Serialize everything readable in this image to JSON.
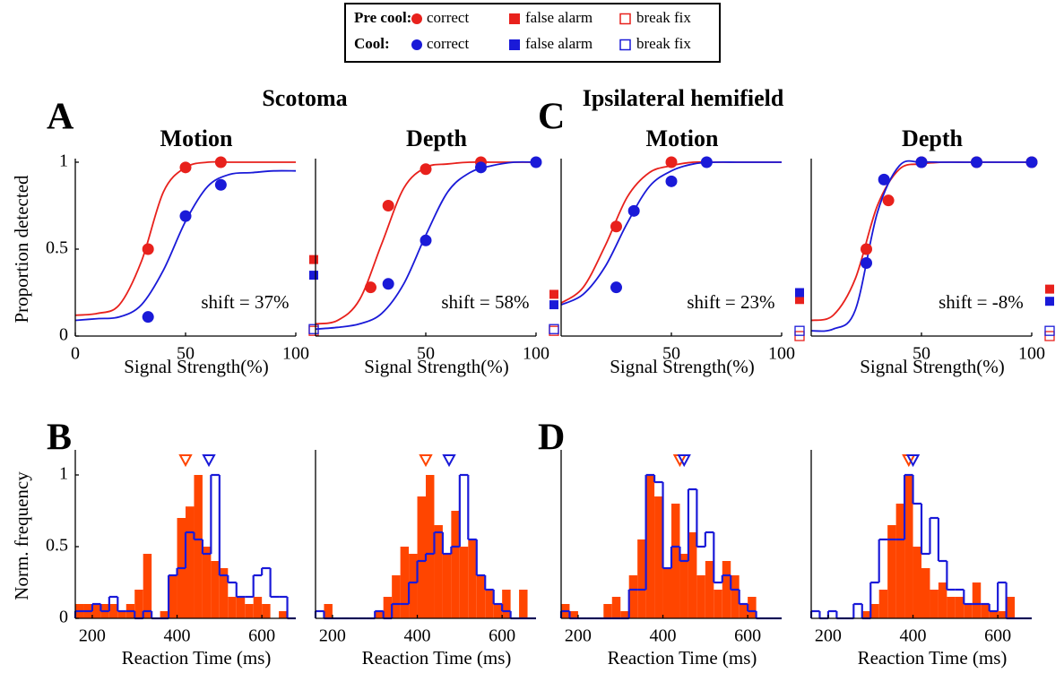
{
  "legend": {
    "rows": [
      {
        "label": "Pre cool:",
        "color": "#e8211c",
        "entries": [
          "correct",
          "false alarm",
          "break fix"
        ]
      },
      {
        "label": "Cool:",
        "color": "#1a1ad8",
        "entries": [
          "correct",
          "false alarm",
          "break fix"
        ]
      }
    ]
  },
  "headers": [
    "Scotoma",
    "Ipsilateral hemifield"
  ],
  "letters": [
    "A",
    "B",
    "C",
    "D"
  ],
  "chart_data": [
    {
      "type": "scatter",
      "title": "Motion",
      "xlabel": "Signal Strength(%)",
      "ylabel": "Proportion detected",
      "annotation": "shift = 37%",
      "xlim": [
        0,
        100
      ],
      "ylim": [
        0,
        1
      ],
      "xticks": [
        0,
        50,
        100
      ],
      "yticks": [
        0,
        0.5,
        1
      ],
      "fit_x": [
        0,
        10,
        20,
        30,
        40,
        50,
        60,
        70,
        80,
        90,
        100
      ],
      "series": [
        {
          "color": "#e8211c",
          "x": [
            33,
            50,
            66
          ],
          "values": [
            0.5,
            0.97,
            1.0
          ],
          "fit_values": [
            0.12,
            0.13,
            0.18,
            0.43,
            0.83,
            0.97,
            1,
            1,
            1,
            1,
            1
          ],
          "false_alarm": 0.44,
          "break_fix": 0.03
        },
        {
          "color": "#1a1ad8",
          "x": [
            33,
            50,
            66
          ],
          "values": [
            0.11,
            0.69,
            0.87
          ],
          "fit_values": [
            0.09,
            0.1,
            0.11,
            0.18,
            0.38,
            0.66,
            0.86,
            0.93,
            0.94,
            0.95,
            0.95
          ],
          "false_alarm": 0.35,
          "break_fix": 0.04
        }
      ]
    },
    {
      "type": "scatter",
      "title": "Depth",
      "xlabel": "Signal Strength(%)",
      "annotation": "shift = 58%",
      "xlim": [
        0,
        100
      ],
      "ylim": [
        0,
        1
      ],
      "xticks": [
        50,
        100
      ],
      "fit_x": [
        0,
        10,
        20,
        30,
        40,
        50,
        60,
        70,
        80,
        90,
        100
      ],
      "series": [
        {
          "color": "#e8211c",
          "x": [
            25,
            33,
            50,
            75
          ],
          "values": [
            0.28,
            0.75,
            0.96,
            1.0
          ],
          "fit_values": [
            0.07,
            0.09,
            0.21,
            0.53,
            0.85,
            0.97,
            0.99,
            1,
            1,
            1,
            1
          ],
          "false_alarm": 0.24,
          "break_fix": 0.03
        },
        {
          "color": "#1a1ad8",
          "x": [
            33,
            50,
            75,
            100
          ],
          "values": [
            0.3,
            0.55,
            0.97,
            1.0
          ],
          "fit_values": [
            0.04,
            0.05,
            0.07,
            0.13,
            0.3,
            0.58,
            0.83,
            0.94,
            0.98,
            1,
            1
          ],
          "false_alarm": 0.18,
          "break_fix": 0.04
        }
      ]
    },
    {
      "type": "scatter",
      "title": "Motion",
      "xlabel": "Signal Strength(%)",
      "annotation": "shift = 23%",
      "xlim": [
        0,
        100
      ],
      "ylim": [
        0,
        1
      ],
      "xticks": [
        50,
        100
      ],
      "fit_x": [
        0,
        10,
        20,
        30,
        40,
        50,
        60,
        70,
        80,
        90,
        100
      ],
      "series": [
        {
          "color": "#e8211c",
          "x": [
            25,
            50
          ],
          "values": [
            0.63,
            1.0
          ],
          "fit_values": [
            0.19,
            0.28,
            0.52,
            0.8,
            0.94,
            0.98,
            1,
            1,
            1,
            1,
            1
          ],
          "false_alarm": 0.21,
          "break_fix": 0.0
        },
        {
          "color": "#1a1ad8",
          "x": [
            25,
            33,
            50,
            66
          ],
          "values": [
            0.28,
            0.72,
            0.89,
            1.0
          ],
          "fit_values": [
            0.18,
            0.24,
            0.4,
            0.65,
            0.86,
            0.95,
            0.99,
            1,
            1,
            1,
            1
          ],
          "false_alarm": 0.25,
          "break_fix": 0.03
        }
      ]
    },
    {
      "type": "scatter",
      "title": "Depth",
      "xlabel": "Signal Strength(%)",
      "annotation": "shift = -8%",
      "xlim": [
        0,
        100
      ],
      "ylim": [
        0,
        1
      ],
      "xticks": [
        50,
        100
      ],
      "fit_x": [
        0,
        10,
        20,
        30,
        40,
        50,
        60,
        70,
        80,
        90,
        100
      ],
      "series": [
        {
          "color": "#e8211c",
          "x": [
            25,
            35,
            50,
            75,
            100
          ],
          "values": [
            0.5,
            0.78,
            1.0,
            1.0,
            1.0
          ],
          "fit_values": [
            0.09,
            0.12,
            0.33,
            0.75,
            0.96,
            0.99,
            1,
            1,
            1,
            1,
            1
          ],
          "false_alarm": 0.27,
          "break_fix": 0.0
        },
        {
          "color": "#1a1ad8",
          "x": [
            25,
            33,
            50,
            75,
            100
          ],
          "values": [
            0.42,
            0.9,
            1.0,
            1.0,
            1.0
          ],
          "fit_values": [
            0.03,
            0.04,
            0.15,
            0.71,
            0.98,
            1,
            1,
            1,
            1,
            1,
            1
          ],
          "false_alarm": 0.2,
          "break_fix": 0.03
        }
      ]
    },
    {
      "type": "histogram",
      "xlabel": "Reaction Time (ms)",
      "ylabel": "Norm. frequency",
      "xlim": [
        160,
        680
      ],
      "ylim": [
        0,
        1.15
      ],
      "xticks": [
        200,
        400,
        600
      ],
      "yticks": [
        0,
        0.5,
        1
      ],
      "bins": [
        160,
        180,
        200,
        220,
        240,
        260,
        280,
        300,
        320,
        340,
        360,
        380,
        400,
        420,
        440,
        460,
        480,
        500,
        520,
        540,
        560,
        580,
        600,
        620,
        640,
        660,
        680
      ],
      "series": [
        {
          "color": "#ff4500",
          "histtype": "bar",
          "median": 420,
          "values": [
            0.1,
            0.1,
            0.1,
            0.1,
            0.1,
            0.05,
            0.1,
            0.2,
            0.45,
            0,
            0.05,
            0.3,
            0.7,
            0.78,
            1,
            0.5,
            0.4,
            0.35,
            0.15,
            0.15,
            0.1,
            0.15,
            0.1,
            0,
            0.05,
            0
          ]
        },
        {
          "color": "#1a1ad8",
          "histtype": "step",
          "median": 475,
          "values": [
            0.05,
            0.05,
            0.1,
            0.05,
            0.15,
            0.05,
            0.05,
            0,
            0.05,
            0,
            0,
            0.3,
            0.35,
            0.6,
            0.55,
            0.45,
            1,
            0.3,
            0.25,
            0.15,
            0.15,
            0.3,
            0.35,
            0.15,
            0.15,
            0
          ]
        }
      ]
    },
    {
      "type": "histogram",
      "xlabel": "Reaction Time (ms)",
      "xlim": [
        160,
        680
      ],
      "ylim": [
        0,
        1.15
      ],
      "xticks": [
        200,
        400,
        600
      ],
      "bins": [
        160,
        180,
        200,
        220,
        240,
        260,
        280,
        300,
        320,
        340,
        360,
        380,
        400,
        420,
        440,
        460,
        480,
        500,
        520,
        540,
        560,
        580,
        600,
        620,
        640,
        660,
        680
      ],
      "series": [
        {
          "color": "#ff4500",
          "histtype": "bar",
          "median": 420,
          "values": [
            0,
            0.1,
            0,
            0,
            0,
            0,
            0,
            0.05,
            0.15,
            0.3,
            0.5,
            0.45,
            0.85,
            1,
            0.65,
            0.45,
            0.75,
            0.5,
            0.55,
            0.3,
            0.2,
            0.1,
            0.2,
            0,
            0.2,
            0
          ]
        },
        {
          "color": "#1a1ad8",
          "histtype": "step",
          "median": 475,
          "values": [
            0.05,
            0,
            0,
            0,
            0,
            0,
            0,
            0.05,
            0,
            0.1,
            0.1,
            0.25,
            0.4,
            0.45,
            0.6,
            0.45,
            0.5,
            1,
            0.55,
            0.3,
            0.2,
            0.1,
            0.05,
            0,
            0,
            0
          ]
        }
      ]
    },
    {
      "type": "histogram",
      "xlabel": "Reaction Time (ms)",
      "xlim": [
        160,
        680
      ],
      "ylim": [
        0,
        1.15
      ],
      "xticks": [
        200,
        400,
        600
      ],
      "bins": [
        160,
        180,
        200,
        220,
        240,
        260,
        280,
        300,
        320,
        340,
        360,
        380,
        400,
        420,
        440,
        460,
        480,
        500,
        520,
        540,
        560,
        580,
        600,
        620,
        640,
        660,
        680
      ],
      "series": [
        {
          "color": "#ff4500",
          "histtype": "bar",
          "median": 440,
          "values": [
            0.1,
            0.05,
            0,
            0,
            0,
            0.1,
            0.15,
            0.05,
            0.3,
            0.55,
            1,
            0.85,
            0.35,
            0.8,
            0.45,
            0.6,
            0.3,
            0.4,
            0.2,
            0.4,
            0.3,
            0.1,
            0.15,
            0,
            0,
            0
          ]
        },
        {
          "color": "#1a1ad8",
          "histtype": "step",
          "median": 450,
          "values": [
            0.05,
            0,
            0,
            0,
            0,
            0,
            0,
            0,
            0.2,
            0.2,
            1,
            0.95,
            0.35,
            0.5,
            0.4,
            0.9,
            0.5,
            0.6,
            0.25,
            0.3,
            0.2,
            0.1,
            0.05,
            0,
            0,
            0
          ]
        }
      ]
    },
    {
      "type": "histogram",
      "xlabel": "Reaction Time (ms)",
      "xlim": [
        160,
        680
      ],
      "ylim": [
        0,
        1.15
      ],
      "xticks": [
        200,
        400,
        600
      ],
      "bins": [
        160,
        180,
        200,
        220,
        240,
        260,
        280,
        300,
        320,
        340,
        360,
        380,
        400,
        420,
        440,
        460,
        480,
        500,
        520,
        540,
        560,
        580,
        600,
        620,
        640,
        660,
        680
      ],
      "series": [
        {
          "color": "#ff4500",
          "histtype": "bar",
          "median": 390,
          "values": [
            0,
            0,
            0,
            0,
            0,
            0,
            0.05,
            0.1,
            0.2,
            0.65,
            0.8,
            1,
            0.5,
            0.35,
            0.2,
            0.25,
            0.15,
            0.15,
            0.1,
            0.25,
            0.1,
            0.05,
            0.05,
            0.15,
            0,
            0
          ]
        },
        {
          "color": "#1a1ad8",
          "histtype": "step",
          "median": 400,
          "values": [
            0.05,
            0,
            0.05,
            0,
            0,
            0.1,
            0,
            0.25,
            0.55,
            0.55,
            0.55,
            1,
            0.8,
            0.45,
            0.7,
            0.4,
            0.2,
            0.2,
            0.1,
            0.1,
            0.1,
            0.05,
            0.25,
            0,
            0,
            0
          ]
        }
      ]
    }
  ]
}
